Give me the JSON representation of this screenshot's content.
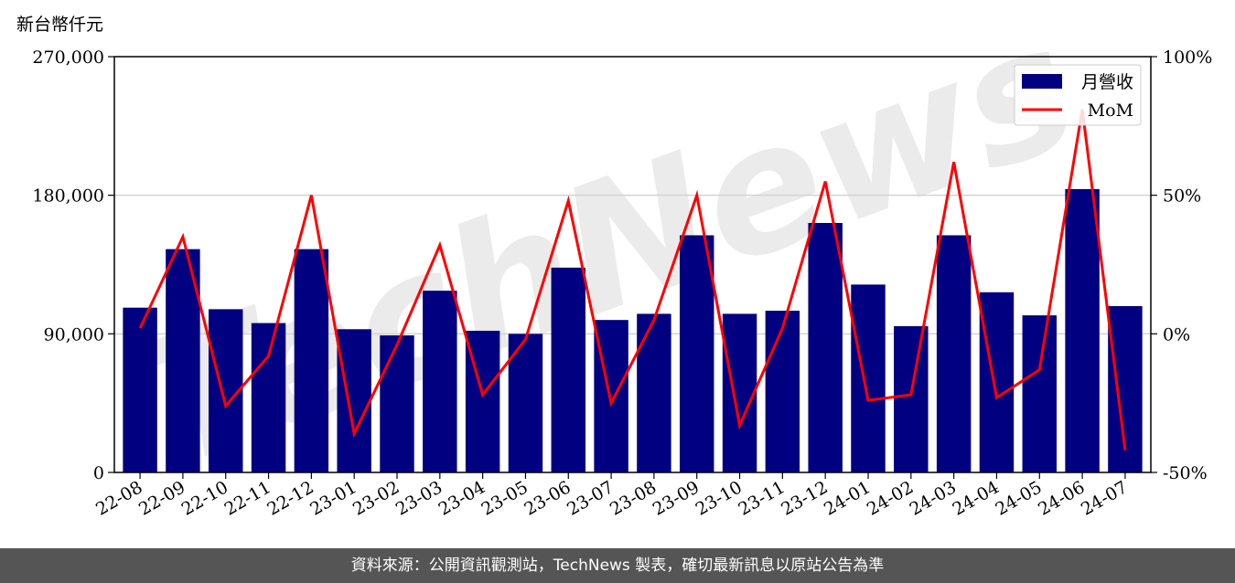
{
  "unit_label": "新台幣仟元",
  "watermark": "TechNews",
  "footer": "資料來源：公開資訊觀測站，TechNews 製表，確切最新訊息以原站公告為準",
  "colors": {
    "bar": "#000080",
    "line": "#ff0000",
    "grid": "#d3d3d3",
    "footer_bg": "#555555"
  },
  "chart_data": {
    "type": "bar",
    "categories": [
      "22-08",
      "22-09",
      "22-10",
      "22-11",
      "22-12",
      "23-01",
      "23-02",
      "23-03",
      "23-04",
      "23-05",
      "23-06",
      "23-07",
      "23-08",
      "23-09",
      "23-10",
      "23-11",
      "23-12",
      "24-01",
      "24-02",
      "24-03",
      "24-04",
      "24-05",
      "24-06",
      "24-07"
    ],
    "series": [
      {
        "name": "月營收",
        "type": "bar",
        "axis": "left",
        "values": [
          107000,
          145000,
          106000,
          97000,
          145000,
          93000,
          89000,
          118000,
          92000,
          90000,
          133000,
          99000,
          103000,
          154000,
          103000,
          105000,
          162000,
          122000,
          95000,
          154000,
          117000,
          102000,
          184000,
          108000
        ]
      },
      {
        "name": "MoM",
        "type": "line",
        "axis": "right",
        "unit": "%",
        "values": [
          2,
          35,
          -26,
          -8,
          50,
          -36,
          -4,
          32,
          -22,
          -2,
          48,
          -25,
          5,
          50,
          -33,
          2,
          55,
          -24,
          -22,
          62,
          -23,
          -13,
          81,
          -42
        ]
      }
    ],
    "y_left": {
      "ticks": [
        "0",
        "90,000",
        "180,000",
        "270,000"
      ],
      "ylim": [
        0,
        270000
      ]
    },
    "y_right": {
      "ticks": [
        "-50%",
        "0%",
        "50%",
        "100%"
      ],
      "ylim": [
        -50,
        100
      ]
    },
    "grid": "horizontal",
    "legend": {
      "position": "top-right",
      "entries": [
        "月營收",
        "MoM"
      ]
    }
  }
}
